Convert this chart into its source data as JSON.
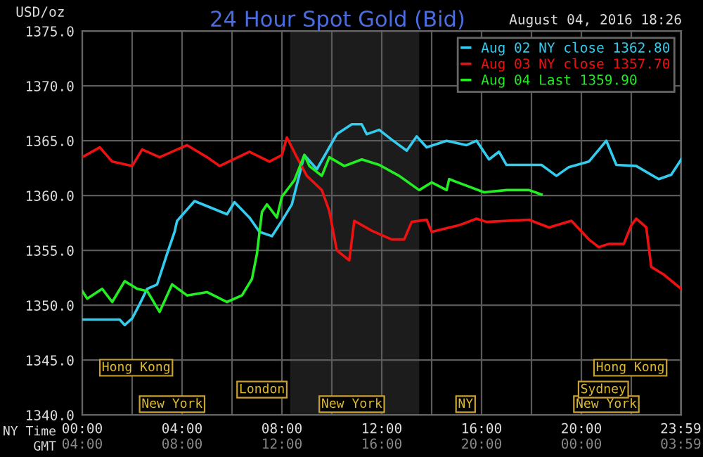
{
  "chart_data": {
    "type": "line",
    "title": "24 Hour Spot Gold (Bid)",
    "ylabel": "USD/oz",
    "xlabel": "NY Time",
    "x2label": "GMT",
    "annotations": [
      {
        "text": "August 04, 2016 18:26"
      },
      "Hong Kong",
      "London",
      "New York",
      "New York",
      "NY",
      "New York",
      "Sydney",
      "Hong Kong"
    ],
    "series": [
      {
        "name": "Aug 02 NY close 1362.80",
        "color": "#33ccee",
        "x": [
          0,
          1.5,
          1.7,
          2,
          2.3,
          2.6,
          3,
          3.4,
          3.7,
          3.8,
          4.5,
          5.8,
          6.1,
          6.7,
          7.1,
          7.6,
          8,
          8.4,
          8.9,
          9.4,
          10.2,
          10.8,
          11.2,
          11.4,
          11.9,
          12.4,
          13,
          13.4,
          13.8,
          14.6,
          15.4,
          15.8,
          16.3,
          16.7,
          17,
          18.4,
          19,
          19.5,
          20.3,
          21,
          21.4,
          22.2,
          23.1,
          23.6,
          24
        ],
        "values": [
          1348.7,
          1348.7,
          1348.2,
          1348.8,
          1350.1,
          1351.5,
          1351.9,
          1354.7,
          1356.7,
          1357.7,
          1359.5,
          1358.3,
          1359.4,
          1358,
          1356.7,
          1356.3,
          1357.7,
          1359.2,
          1363.7,
          1362.4,
          1365.6,
          1366.5,
          1366.5,
          1365.6,
          1366,
          1365.1,
          1364.1,
          1365.4,
          1364.4,
          1365,
          1364.6,
          1365,
          1363.3,
          1364,
          1362.8,
          1362.8,
          1361.8,
          1362.6,
          1363.1,
          1365,
          1362.8,
          1362.7,
          1361.5,
          1361.9,
          1363.3
        ]
      },
      {
        "name": "Aug 03 NY close 1357.70",
        "color": "#ee1111",
        "x": [
          0,
          0.7,
          1.2,
          2,
          2.4,
          3.1,
          4.2,
          5,
          5.5,
          6.7,
          7.5,
          8,
          8.2,
          8.6,
          9,
          9.6,
          9.9,
          10.2,
          10.7,
          10.9,
          11.6,
          12.4,
          12.9,
          13.2,
          13.8,
          14,
          15.1,
          15.8,
          16.2,
          17.9,
          18.7,
          19.6,
          20.3,
          20.7,
          21.1,
          21.7,
          22,
          22.2,
          22.6,
          22.8,
          23.3,
          24
        ],
        "values": [
          1363.5,
          1364.4,
          1363.1,
          1362.7,
          1364.2,
          1363.5,
          1364.6,
          1363.5,
          1362.7,
          1364,
          1363.1,
          1363.7,
          1365.3,
          1363.5,
          1361.8,
          1360.5,
          1358.6,
          1355,
          1354.1,
          1357.7,
          1356.8,
          1356,
          1356,
          1357.6,
          1357.8,
          1356.7,
          1357.3,
          1357.9,
          1357.6,
          1357.8,
          1357.1,
          1357.7,
          1356,
          1355.3,
          1355.6,
          1355.6,
          1357.3,
          1357.9,
          1357.1,
          1353.5,
          1352.8,
          1351.5
        ]
      },
      {
        "name": "Aug 04 Last 1359.90",
        "color": "#22ee22",
        "x": [
          0,
          0.2,
          0.8,
          1.2,
          1.7,
          2.2,
          2.6,
          3.1,
          3.6,
          4.2,
          5,
          5.8,
          6.4,
          6.8,
          7,
          7.2,
          7.4,
          7.8,
          8,
          8.5,
          8.9,
          9.1,
          9.6,
          9.9,
          10.5,
          11.2,
          11.9,
          12.7,
          13.5,
          14,
          14.6,
          14.7,
          15.4,
          16.1,
          17,
          17.9,
          18.4
        ],
        "values": [
          1351.3,
          1350.6,
          1351.5,
          1350.3,
          1352.2,
          1351.5,
          1351.3,
          1349.4,
          1351.9,
          1350.9,
          1351.2,
          1350.3,
          1350.9,
          1352.4,
          1354.7,
          1358.5,
          1359.2,
          1358,
          1359.9,
          1361.4,
          1363.7,
          1362.7,
          1361.8,
          1363.5,
          1362.7,
          1363.3,
          1362.8,
          1361.8,
          1360.5,
          1361.2,
          1360.5,
          1361.5,
          1360.9,
          1360.3,
          1360.5,
          1360.5,
          1360.1
        ]
      }
    ],
    "bands": [
      {
        "axis": "x",
        "from": 8.33,
        "to": 13.5,
        "color": "#1c1c1c"
      }
    ],
    "xlim": [
      0,
      24
    ],
    "ylim": [
      1340,
      1375
    ],
    "xticks": [
      {
        "value": 0,
        "label": "00:00"
      },
      {
        "value": 2,
        "label": null
      },
      {
        "value": 4,
        "label": "04:00"
      },
      {
        "value": 6,
        "label": null
      },
      {
        "value": 8,
        "label": "08:00"
      },
      {
        "value": 10,
        "label": null
      },
      {
        "value": 12,
        "label": "12:00"
      },
      {
        "value": 14,
        "label": null
      },
      {
        "value": 16,
        "label": "16:00"
      },
      {
        "value": 18,
        "label": null
      },
      {
        "value": 20,
        "label": "20:00"
      },
      {
        "value": 22,
        "label": null
      },
      {
        "value": 23.983,
        "label": "23:59"
      }
    ],
    "x2lim": [
      "2016-08-04T04:00",
      "2016-08-05T04:00"
    ],
    "x2ticks": [
      {
        "value": "2016-08-04T04:00",
        "label": "04:00"
      },
      {
        "value": "2016-08-04T08:00",
        "label": "08:00"
      },
      {
        "value": "2016-08-04T12:00",
        "label": "12:00"
      },
      {
        "value": "2016-08-04T16:00",
        "label": "16:00"
      },
      {
        "value": "2016-08-04T20:00",
        "label": "20:00"
      },
      {
        "value": "2016-08-05T00:00",
        "label": "00:00"
      },
      {
        "value": "2016-08-05T03:59",
        "label": "03:59"
      }
    ],
    "yticks": [
      {
        "value": 1340,
        "label": "1340.0"
      },
      {
        "value": 1345,
        "label": "1345.0"
      },
      {
        "value": 1350,
        "label": "1350.0"
      },
      {
        "value": 1355,
        "label": "1355.0"
      },
      {
        "value": 1360,
        "label": "1360.0"
      },
      {
        "value": 1365,
        "label": "1365.0"
      },
      {
        "value": 1370,
        "label": "1370.0"
      },
      {
        "value": 1375,
        "label": "1375.0"
      }
    ],
    "grid": true,
    "legend": "top right",
    "marker": "none",
    "line_style": "solid"
  }
}
